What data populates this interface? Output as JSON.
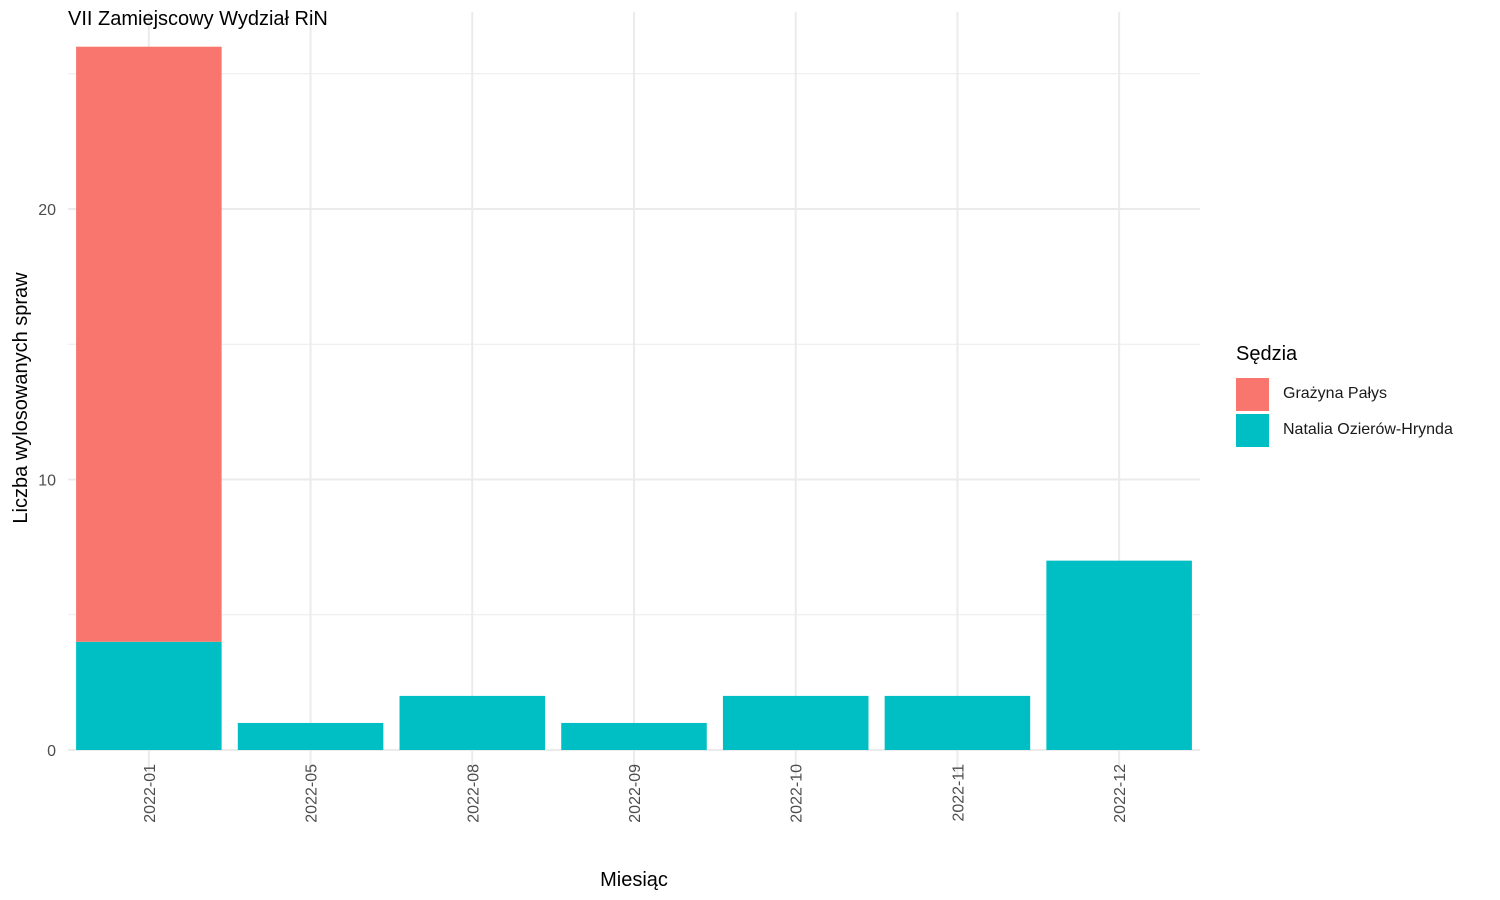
{
  "chart_data": {
    "type": "bar",
    "stacked": true,
    "title": "VII Zamiejscowy Wydział RiN",
    "xlabel": "Miesiąc",
    "ylabel": "Liczba wylosowanych spraw",
    "categories": [
      "2022-01",
      "2022-05",
      "2022-08",
      "2022-09",
      "2022-10",
      "2022-11",
      "2022-12"
    ],
    "series": [
      {
        "name": "Natalia Ozierów-Hrynda",
        "color": "#00BFC4",
        "values": [
          4,
          1,
          2,
          1,
          2,
          2,
          7
        ]
      },
      {
        "name": "Grażyna Pałys",
        "color": "#F8766D",
        "values": [
          22,
          0,
          0,
          0,
          0,
          0,
          0
        ]
      }
    ],
    "yticks": [
      0,
      10,
      20
    ],
    "ylim": [
      0,
      27
    ],
    "grid": true,
    "legend": {
      "title": "Sędzia",
      "position": "right",
      "items": [
        "Grażyna Pałys",
        "Natalia Ozierów-Hrynda"
      ]
    }
  }
}
